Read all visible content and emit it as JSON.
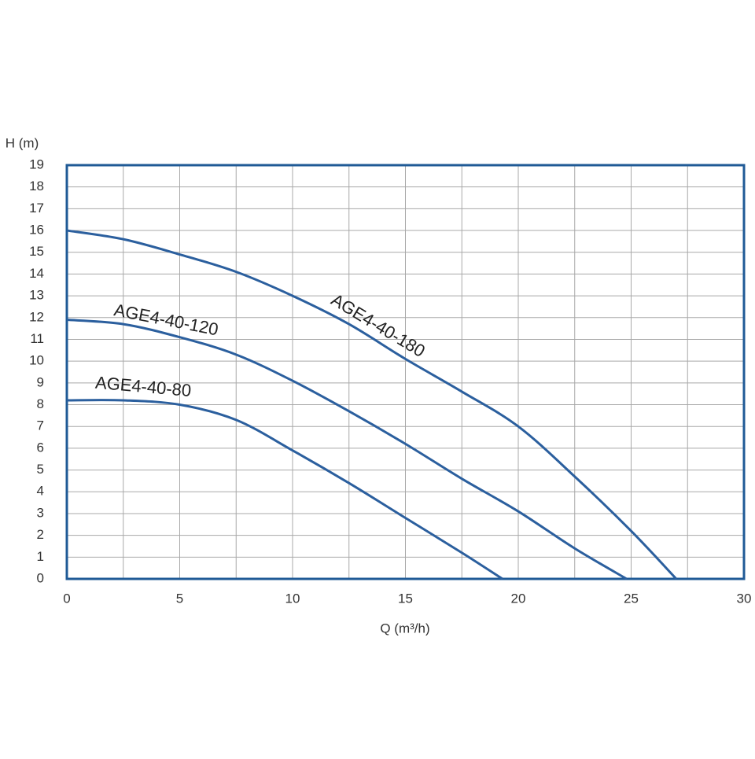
{
  "chart_data": {
    "type": "line",
    "x_label": "Q (m³/h)",
    "y_label": "H (m)",
    "xlim": [
      0,
      30
    ],
    "ylim": [
      0,
      19
    ],
    "xticks": [
      0,
      5,
      10,
      15,
      20,
      25,
      30
    ],
    "x_minor_ticks": [
      2.5,
      7.5,
      12.5,
      17.5,
      22.5,
      27.5
    ],
    "yticks": [
      0,
      1,
      2,
      3,
      4,
      5,
      6,
      7,
      8,
      9,
      10,
      11,
      12,
      13,
      14,
      15,
      16,
      17,
      18,
      19
    ],
    "grid": true,
    "series": [
      {
        "name": "AGE4-40-180",
        "color": "#2b5f9e",
        "x": [
          0,
          2.5,
          5,
          7.5,
          10,
          12.5,
          15,
          17.5,
          20,
          22.5,
          25,
          27
        ],
        "values": [
          16,
          15.6,
          14.9,
          14.1,
          13,
          11.7,
          10.1,
          8.6,
          7.0,
          4.7,
          2.2,
          0
        ]
      },
      {
        "name": "AGE4-40-120",
        "color": "#2b5f9e",
        "x": [
          0,
          2.5,
          5,
          7.5,
          10,
          12.5,
          15,
          17.5,
          20,
          22.5,
          24.8
        ],
        "values": [
          11.9,
          11.7,
          11.1,
          10.3,
          9.1,
          7.7,
          6.2,
          4.6,
          3.1,
          1.4,
          0
        ]
      },
      {
        "name": "AGE4-40-80",
        "color": "#2b5f9e",
        "x": [
          0,
          2.5,
          5,
          7.5,
          10,
          12.5,
          15,
          17.5,
          19.3
        ],
        "values": [
          8.2,
          8.2,
          8.0,
          7.3,
          5.9,
          4.4,
          2.8,
          1.2,
          0
        ]
      }
    ]
  }
}
